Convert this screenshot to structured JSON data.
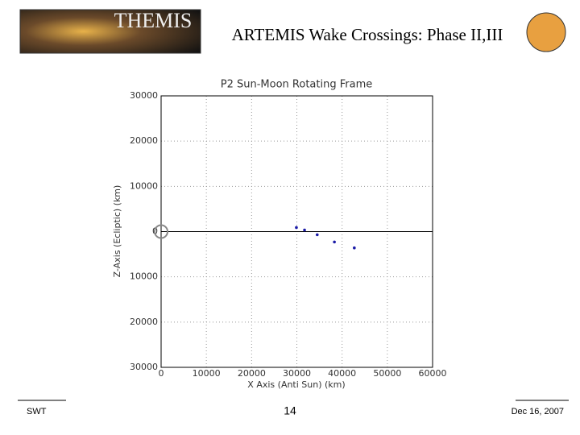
{
  "header": {
    "title": "ARTEMIS Wake Crossings: Phase II,III",
    "logo_text": "THEMIS"
  },
  "footer": {
    "left": "SWT",
    "page": "14",
    "date": "Dec 16, 2007"
  },
  "chart_data": {
    "type": "scatter",
    "title": "P2 Sun-Moon Rotating Frame",
    "x_label": "X Axis (Anti Sun) (km)",
    "y_label": "Z-Axis (Ecliptic) (km)",
    "x": [
      29900,
      31700,
      34500,
      38300,
      42700
    ],
    "values": [
      900,
      350,
      -700,
      -2300,
      -3600
    ],
    "color": "#1a1aa6",
    "xlim": [
      0,
      60000
    ],
    "xticks": [
      0,
      10000,
      20000,
      30000,
      40000,
      50000,
      60000
    ],
    "ylim": [
      -30000,
      30000
    ],
    "yticks": [
      {
        "value": -30000,
        "label": "30000"
      },
      {
        "value": -20000,
        "label": "20000"
      },
      {
        "value": -10000,
        "label": "10000"
      },
      0,
      10000,
      20000,
      30000
    ],
    "grid": true
  }
}
